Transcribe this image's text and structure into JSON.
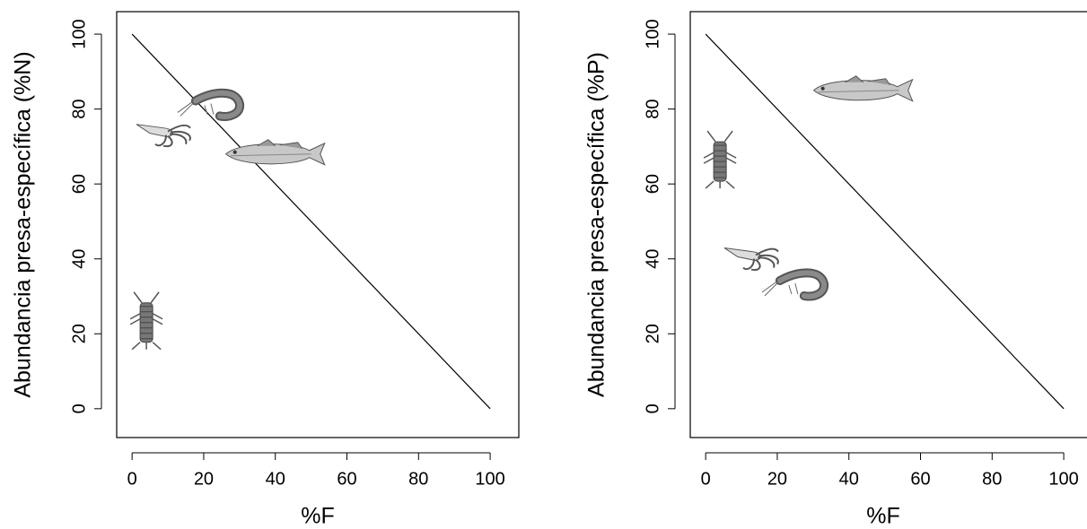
{
  "chart_data": [
    {
      "type": "scatter",
      "xlabel": "%F",
      "ylabel": "Abundancia presa-específica (%N)",
      "x": [
        10,
        24,
        40,
        4
      ],
      "y": [
        74,
        81,
        68,
        23
      ],
      "markers": [
        "squid",
        "shrimp",
        "fish",
        "mantis"
      ],
      "reference_line": {
        "x": [
          0,
          100
        ],
        "y": [
          100,
          0
        ]
      },
      "xlim": [
        -4.3,
        108
      ],
      "ylim": [
        -7.7,
        106
      ],
      "xticks": [
        0,
        20,
        40,
        60,
        80,
        100
      ],
      "yticks": [
        0,
        20,
        40,
        60,
        80,
        100
      ]
    },
    {
      "type": "scatter",
      "xlabel": "%F",
      "ylabel": "Abundancia presa-específica (%P)",
      "x": [
        44,
        4,
        14,
        27
      ],
      "y": [
        85,
        66,
        41,
        33
      ],
      "markers": [
        "fish",
        "mantis",
        "squid",
        "shrimp"
      ],
      "reference_line": {
        "x": [
          0,
          100
        ],
        "y": [
          100,
          0
        ]
      },
      "xlim": [
        -4.3,
        108
      ],
      "ylim": [
        -7.7,
        106
      ],
      "xticks": [
        0,
        20,
        40,
        60,
        80,
        100
      ],
      "yticks": [
        0,
        20,
        40,
        60,
        80,
        100
      ]
    }
  ]
}
